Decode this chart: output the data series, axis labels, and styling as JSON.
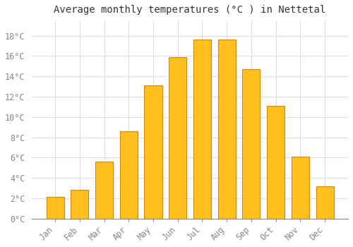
{
  "title": "Average monthly temperatures (°C ) in Nettetal",
  "months": [
    "Jan",
    "Feb",
    "Mar",
    "Apr",
    "May",
    "Jun",
    "Jul",
    "Aug",
    "Sep",
    "Oct",
    "Nov",
    "Dec"
  ],
  "temperatures": [
    2.1,
    2.8,
    5.6,
    8.6,
    13.1,
    15.9,
    17.6,
    17.6,
    14.7,
    11.1,
    6.1,
    3.2
  ],
  "bar_color": "#FFC020",
  "bar_edge_color": "#D4870A",
  "bg_color": "#FFFFFF",
  "plot_bg_color": "#FFFFFF",
  "grid_color": "#DDDDDD",
  "yticks": [
    0,
    2,
    4,
    6,
    8,
    10,
    12,
    14,
    16,
    18
  ],
  "ylim": [
    0,
    19.5
  ],
  "title_fontsize": 10,
  "tick_fontsize": 8.5,
  "tick_color": "#888888",
  "font_family": "monospace"
}
